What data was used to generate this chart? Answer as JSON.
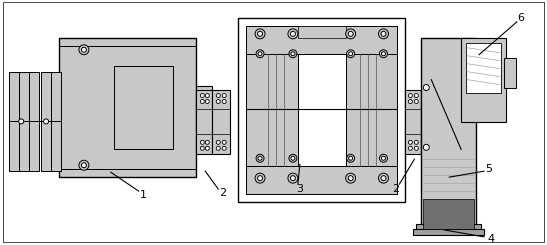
{
  "bg_color": "#ffffff",
  "lc": "#000000",
  "lw": 0.7,
  "lgray": "#c8c8c8",
  "mgray": "#a0a0a0",
  "dgray": "#707070"
}
